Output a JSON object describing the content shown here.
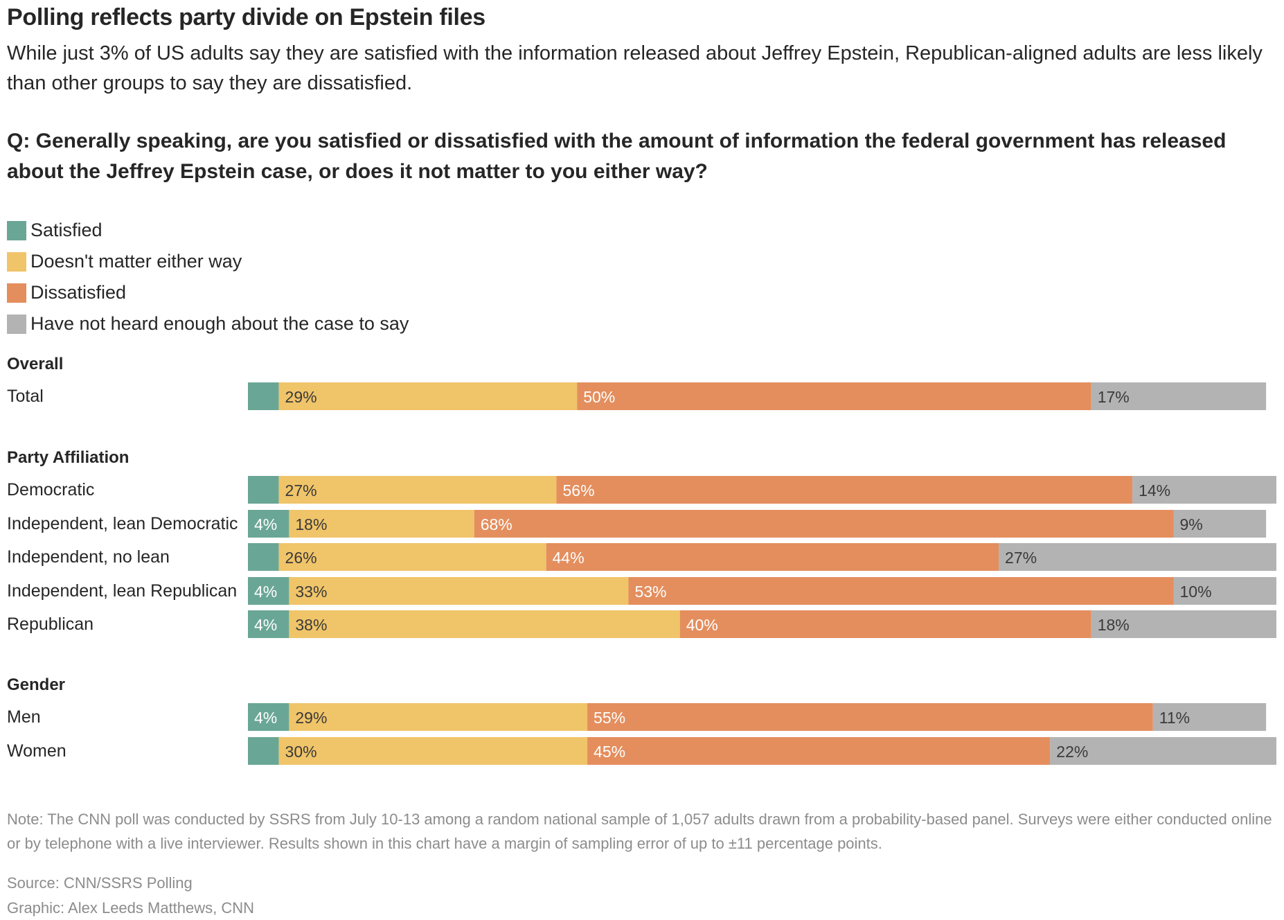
{
  "header": {
    "title": "Polling reflects party divide on Epstein files",
    "subtitle": "While just 3% of US adults say they are satisfied with the information released about Jeffrey Epstein, Republican-aligned adults are less likely than other groups to say they are dissatisfied.",
    "question": "Q: Generally speaking, are you satisfied or dissatisfied with the amount of information the federal government has released about the Jeffrey Epstein case, or does it not matter to you either way?"
  },
  "colors": {
    "satisfied": "#6aa696",
    "doesnt_matter": "#f0c469",
    "dissatisfied": "#e48e5e",
    "not_heard": "#b3b3b3"
  },
  "chart_data": {
    "type": "bar",
    "orientation": "horizontal",
    "stacked": true,
    "xlim": [
      0,
      100
    ],
    "legend_position": "top-left",
    "series": [
      {
        "key": "satisfied",
        "name": "Satisfied"
      },
      {
        "key": "doesnt_matter",
        "name": "Doesn't matter either way"
      },
      {
        "key": "dissatisfied",
        "name": "Dissatisfied"
      },
      {
        "key": "not_heard",
        "name": "Have not heard enough about the case to say"
      }
    ],
    "groups": [
      {
        "name": "Overall",
        "rows": [
          {
            "label": "Total",
            "values": [
              3,
              29,
              50,
              17
            ],
            "labels": [
              "",
              "29%",
              "50%",
              "17%"
            ]
          }
        ]
      },
      {
        "name": "Party Affiliation",
        "rows": [
          {
            "label": "Democratic",
            "values": [
              3,
              27,
              56,
              14
            ],
            "labels": [
              "",
              "27%",
              "56%",
              "14%"
            ]
          },
          {
            "label": "Independent, lean Democratic",
            "values": [
              4,
              18,
              68,
              9
            ],
            "labels": [
              "4%",
              "18%",
              "68%",
              "9%"
            ]
          },
          {
            "label": "Independent, no lean",
            "values": [
              3,
              26,
              44,
              27
            ],
            "labels": [
              "",
              "26%",
              "44%",
              "27%"
            ]
          },
          {
            "label": "Independent, lean Republican",
            "values": [
              4,
              33,
              53,
              10
            ],
            "labels": [
              "4%",
              "33%",
              "53%",
              "10%"
            ]
          },
          {
            "label": "Republican",
            "values": [
              4,
              38,
              40,
              18
            ],
            "labels": [
              "4%",
              "38%",
              "40%",
              "18%"
            ]
          }
        ]
      },
      {
        "name": "Gender",
        "rows": [
          {
            "label": "Men",
            "values": [
              4,
              29,
              55,
              11
            ],
            "labels": [
              "4%",
              "29%",
              "55%",
              "11%"
            ]
          },
          {
            "label": "Women",
            "values": [
              3,
              30,
              45,
              22
            ],
            "labels": [
              "",
              "30%",
              "45%",
              "22%"
            ]
          }
        ]
      }
    ]
  },
  "footer": {
    "note": "Note: The CNN poll was conducted by SSRS from July 10-13 among a random national sample of 1,057 adults drawn from a probability-based panel. Surveys were either conducted online or by telephone with a live interviewer. Results shown in this chart have a margin of sampling error of up to ±11 percentage points.",
    "source": "Source: CNN/SSRS Polling",
    "credit": "Graphic: Alex Leeds Matthews, CNN"
  }
}
